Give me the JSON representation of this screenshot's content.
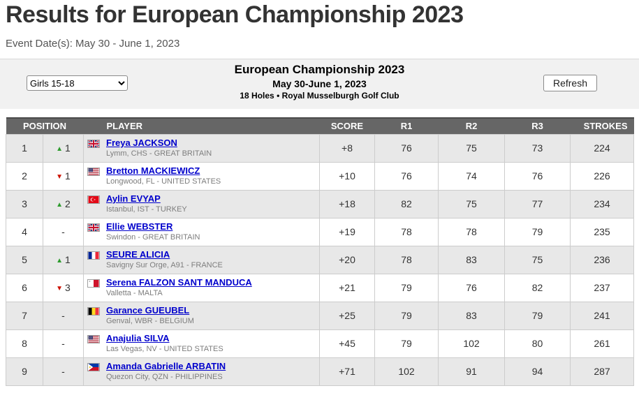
{
  "page": {
    "title": "Results for European Championship 2023",
    "event_dates": "Event Date(s): May 30 - June 1, 2023"
  },
  "toolbar": {
    "division_value": "Girls 15-18",
    "tournament_title": "European Championship 2023",
    "tournament_dates": "May 30-June 1, 2023",
    "tournament_course": "18 Holes • Royal Musselburgh Golf Club",
    "refresh_label": "Refresh"
  },
  "table": {
    "headers": {
      "position": "POSITION",
      "player": "PLAYER",
      "score": "SCORE",
      "r1": "R1",
      "r2": "R2",
      "r3": "R3",
      "strokes": "STROKES"
    },
    "arrow_glyphs": {
      "up": "▲",
      "down": "▼"
    },
    "rows": [
      {
        "position": "1",
        "movement_dir": "up",
        "movement": "1",
        "flag": "gb",
        "name": "Freya JACKSON",
        "location": "Lymm, CHS - GREAT BRITAIN",
        "score": "+8",
        "r1": "76",
        "r2": "75",
        "r3": "73",
        "strokes": "224"
      },
      {
        "position": "2",
        "movement_dir": "down",
        "movement": "1",
        "flag": "us",
        "name": "Bretton MACKIEWICZ",
        "location": "Longwood, FL - UNITED STATES",
        "score": "+10",
        "r1": "76",
        "r2": "74",
        "r3": "76",
        "strokes": "226"
      },
      {
        "position": "3",
        "movement_dir": "up",
        "movement": "2",
        "flag": "tr",
        "name": "Aylin EVYAP",
        "location": "Istanbul, IST - TURKEY",
        "score": "+18",
        "r1": "82",
        "r2": "75",
        "r3": "77",
        "strokes": "234"
      },
      {
        "position": "4",
        "movement_dir": "none",
        "movement": "-",
        "flag": "gb",
        "name": "Ellie WEBSTER",
        "location": "Swindon - GREAT BRITAIN",
        "score": "+19",
        "r1": "78",
        "r2": "78",
        "r3": "79",
        "strokes": "235"
      },
      {
        "position": "5",
        "movement_dir": "up",
        "movement": "1",
        "flag": "fr",
        "name": "SEURE ALICIA",
        "location": "Savigny Sur Orge, A91 - FRANCE",
        "score": "+20",
        "r1": "78",
        "r2": "83",
        "r3": "75",
        "strokes": "236"
      },
      {
        "position": "6",
        "movement_dir": "down",
        "movement": "3",
        "flag": "mt",
        "name": "Serena FALZON SANT MANDUCA",
        "location": "Valletta - MALTA",
        "score": "+21",
        "r1": "79",
        "r2": "76",
        "r3": "82",
        "strokes": "237"
      },
      {
        "position": "7",
        "movement_dir": "none",
        "movement": "-",
        "flag": "be",
        "name": "Garance GUEUBEL",
        "location": "Genval, WBR - BELGIUM",
        "score": "+25",
        "r1": "79",
        "r2": "83",
        "r3": "79",
        "strokes": "241"
      },
      {
        "position": "8",
        "movement_dir": "none",
        "movement": "-",
        "flag": "us",
        "name": "Anajulia SILVA",
        "location": "Las Vegas, NV - UNITED STATES",
        "score": "+45",
        "r1": "79",
        "r2": "102",
        "r3": "80",
        "strokes": "261"
      },
      {
        "position": "9",
        "movement_dir": "none",
        "movement": "-",
        "flag": "ph",
        "name": "Amanda Gabrielle ARBATIN",
        "location": "Quezon City, QZN - PHILIPPINES",
        "score": "+71",
        "r1": "102",
        "r2": "91",
        "r3": "94",
        "strokes": "287"
      }
    ]
  },
  "colors": {
    "header_bg": "#666666",
    "row_alt_bg": "#e8e8e8",
    "link_blue": "#0000cc",
    "movement_up_green": "#2e9b2e",
    "movement_down_red": "#cc1100"
  }
}
